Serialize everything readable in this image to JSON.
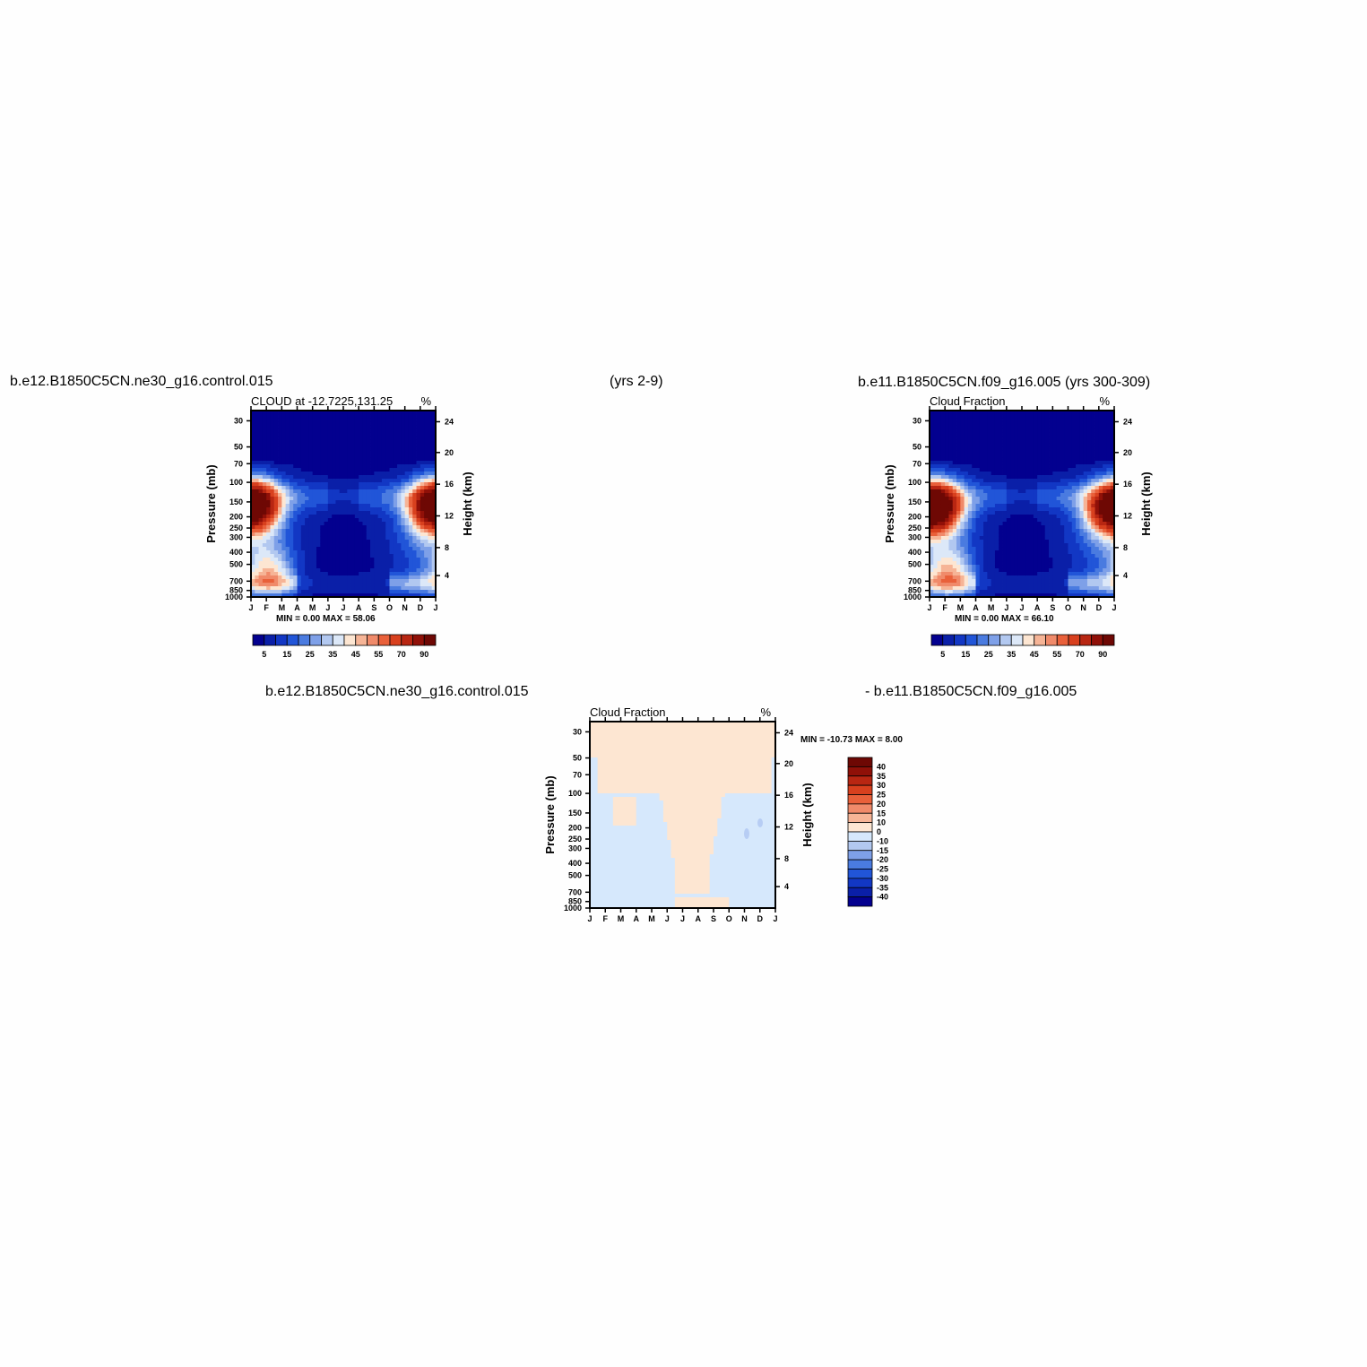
{
  "header": {
    "top_left": "b.e12.B1850C5CN.ne30_g16.control.015",
    "top_center": "(yrs 2-9)",
    "top_right": "b.e11.B1850C5CN.f09_g16.005 (yrs 300-309)",
    "bottom_left": "b.e12.B1850C5CN.ne30_g16.control.015",
    "bottom_right": "- b.e11.B1850C5CN.f09_g16.005"
  },
  "colors": {
    "abs_scale": [
      "#03008f",
      "#0a1fa8",
      "#1237c4",
      "#2155d8",
      "#4a7be0",
      "#7ea0e8",
      "#b2c8f0",
      "#dce8f8",
      "#fde6d2",
      "#f6b496",
      "#f08a6a",
      "#e9603a",
      "#d8401e",
      "#b82612",
      "#901008",
      "#6e0804"
    ],
    "diff_scale": [
      "#03008f",
      "#0a1fa8",
      "#1237c4",
      "#2155d8",
      "#4a7be0",
      "#7ea0e8",
      "#b2c8f0",
      "#d6e8fc",
      "#fde6d2",
      "#f6b496",
      "#f08a6a",
      "#e9603a",
      "#d8401e",
      "#b82612",
      "#901008",
      "#6e0804"
    ]
  },
  "chart_data": [
    {
      "type": "heatmap",
      "title": "CLOUD at -12.7225,131.25",
      "units": "%",
      "ylabel": "Pressure (mb)",
      "ylabel_right": "Height (km)",
      "x_ticks": [
        "J",
        "F",
        "M",
        "A",
        "M",
        "J",
        "J",
        "A",
        "S",
        "O",
        "N",
        "D",
        "J"
      ],
      "y_ticks": [
        "30",
        "50",
        "70",
        "100",
        "150",
        "200",
        "250",
        "300",
        "400",
        "500",
        "700",
        "850",
        "1000"
      ],
      "y_right_ticks": [
        "24",
        "20",
        "16",
        "12",
        "8",
        "4"
      ],
      "stats": {
        "min_label": "MIN =",
        "min": "0.00",
        "max_label": "MAX =",
        "max": "58.06"
      },
      "colorbar_labels": [
        "5",
        "15",
        "25",
        "35",
        "45",
        "55",
        "70",
        "90"
      ],
      "hotspots": [
        {
          "month": 0.3,
          "pressure": 160,
          "value": 58
        },
        {
          "month": 11.8,
          "pressure": 170,
          "value": 45
        },
        {
          "month": 1.2,
          "pressure": 600,
          "value": 30
        }
      ]
    },
    {
      "type": "heatmap",
      "title": "Cloud Fraction",
      "units": "%",
      "ylabel": "Pressure (mb)",
      "ylabel_right": "Height (km)",
      "x_ticks": [
        "J",
        "F",
        "M",
        "A",
        "M",
        "J",
        "J",
        "A",
        "S",
        "O",
        "N",
        "D",
        "J"
      ],
      "y_ticks": [
        "30",
        "50",
        "70",
        "100",
        "150",
        "200",
        "250",
        "300",
        "400",
        "500",
        "700",
        "850",
        "1000"
      ],
      "y_right_ticks": [
        "24",
        "20",
        "16",
        "12",
        "8",
        "4"
      ],
      "stats": {
        "min_label": "MIN =",
        "min": "0.00",
        "max_label": "MAX =",
        "max": "66.10"
      },
      "colorbar_labels": [
        "5",
        "15",
        "25",
        "35",
        "45",
        "55",
        "70",
        "90"
      ],
      "hotspots": [
        {
          "month": 0.6,
          "pressure": 165,
          "value": 66
        },
        {
          "month": 11.7,
          "pressure": 175,
          "value": 52
        },
        {
          "month": 1.3,
          "pressure": 600,
          "value": 32
        }
      ]
    },
    {
      "type": "heatmap",
      "title": "Cloud Fraction",
      "units": "%",
      "ylabel": "Pressure (mb)",
      "ylabel_right": "Height (km)",
      "x_ticks": [
        "J",
        "F",
        "M",
        "A",
        "M",
        "J",
        "J",
        "A",
        "S",
        "O",
        "N",
        "D",
        "J"
      ],
      "y_ticks": [
        "30",
        "50",
        "70",
        "100",
        "150",
        "200",
        "250",
        "300",
        "400",
        "500",
        "700",
        "850",
        "1000"
      ],
      "y_right_ticks": [
        "24",
        "20",
        "16",
        "12",
        "8",
        "4"
      ],
      "stats": {
        "min_label": "MIN =",
        "min": "-10.73",
        "max_label": "MAX =",
        "max": "8.00"
      },
      "colorbar_labels": [
        "40",
        "35",
        "30",
        "25",
        "20",
        "15",
        "10",
        "0",
        "-10",
        "-15",
        "-20",
        "-25",
        "-30",
        "-35",
        "-40"
      ],
      "regions": [
        {
          "label": "0 to 10",
          "color_index": 8,
          "description": "upper levels and central months"
        },
        {
          "label": "-10 to 0",
          "color_index": 7,
          "description": "lower-left and lower-right regions"
        }
      ]
    }
  ]
}
